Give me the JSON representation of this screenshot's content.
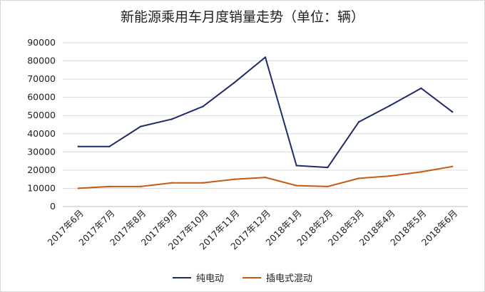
{
  "chart_data": {
    "type": "line",
    "title": "新能源乘用车月度销量走势（单位：辆）",
    "categories": [
      "2017年6月",
      "2017年7月",
      "2017年8月",
      "2017年9月",
      "2017年10月",
      "2017年11月",
      "2017年12月",
      "2018年1月",
      "2018年2月",
      "2018年3月",
      "2018年4月",
      "2018年5月",
      "2018年6月"
    ],
    "series": [
      {
        "name": "纯电动",
        "color": "#1f2a6b",
        "values": [
          33000,
          33000,
          44000,
          48000,
          55000,
          68000,
          82000,
          22500,
          21500,
          46500,
          55500,
          65000,
          52000
        ]
      },
      {
        "name": "插电式混动",
        "color": "#c55a11",
        "values": [
          10000,
          11000,
          11000,
          13000,
          13000,
          15000,
          16000,
          11500,
          11000,
          15500,
          16800,
          19000,
          22000
        ]
      }
    ],
    "yticks": [
      "0",
      "10000",
      "20000",
      "30000",
      "40000",
      "50000",
      "60000",
      "70000",
      "80000",
      "90000"
    ],
    "ylim": [
      0,
      90000
    ],
    "grid": true,
    "legend": "bottom"
  }
}
